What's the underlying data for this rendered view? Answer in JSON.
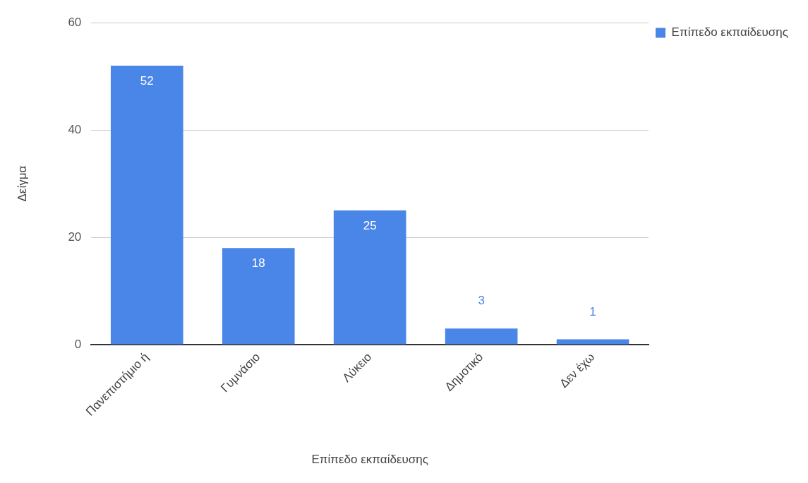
{
  "chart_data": {
    "type": "bar",
    "xlabel": "Επίπεδο εκπαίδευσης",
    "ylabel": "Δείγμα",
    "categories": [
      "Πανεπιστήμιο ή",
      "Γυμνάσιο",
      "Λύκειο",
      "Δημοτικό",
      "Δεν έχω"
    ],
    "series": [
      {
        "name": "Επίπεδο εκπαίδευσης",
        "color": "#4a86e8",
        "values": [
          52,
          18,
          25,
          3,
          1
        ]
      }
    ],
    "ylim": [
      0,
      60
    ],
    "yticks": [
      0,
      20,
      40,
      60
    ],
    "grid": "y",
    "legend": "top right",
    "data_labels": true
  }
}
